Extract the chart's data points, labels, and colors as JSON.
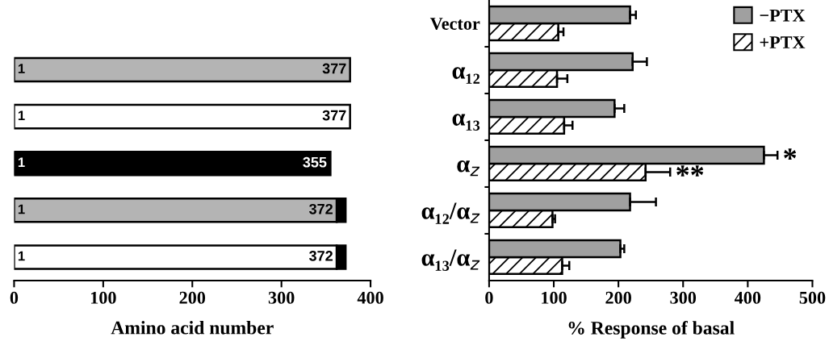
{
  "chart_data": [
    {
      "type": "bar",
      "orientation": "horizontal",
      "stacked": true,
      "categories": [
        null,
        null,
        null,
        null,
        null
      ],
      "xlabel": "Amino acid number",
      "xlim": [
        0,
        400
      ],
      "xticks": [
        0,
        100,
        200,
        300,
        400
      ],
      "annotations": [
        "1",
        "1",
        "1",
        "1",
        "1"
      ],
      "totals": [
        "377",
        "377",
        "355",
        "372",
        "372"
      ],
      "series": [
        {
          "colors": [
            "#b4b4b4",
            "#ffffff",
            "#000000",
            "#b4b4b4",
            "#ffffff"
          ],
          "values": [
            377,
            377,
            355,
            362,
            362
          ]
        },
        {
          "color": "#000000",
          "values": [
            0,
            0,
            0,
            10,
            10
          ]
        }
      ]
    },
    {
      "type": "bar",
      "orientation": "horizontal",
      "categories": [
        "Vector",
        "α₁₂",
        "α₁₃",
        "α$_{z}$",
        "α₁₂/α$_{z}$",
        "α₁₃/α$_{z}$"
      ],
      "xlabel": "% Response of basal",
      "xlim": [
        0,
        500
      ],
      "xticks": [
        0,
        100,
        200,
        300,
        400,
        500
      ],
      "legend": "top right",
      "grid": false,
      "annotations": [
        "*",
        "**"
      ],
      "series": [
        {
          "name": "−PTX",
          "color": "#a0a0a0",
          "values": [
            218,
            222,
            194,
            425,
            218,
            203
          ],
          "errors": [
            9,
            22,
            15,
            21,
            40,
            6
          ]
        },
        {
          "name": "+PTX",
          "color": "#ffffff",
          "values": [
            107,
            105,
            116,
            242,
            98,
            113
          ],
          "errors": [
            8,
            16,
            13,
            38,
            4,
            11
          ]
        }
      ]
    }
  ]
}
